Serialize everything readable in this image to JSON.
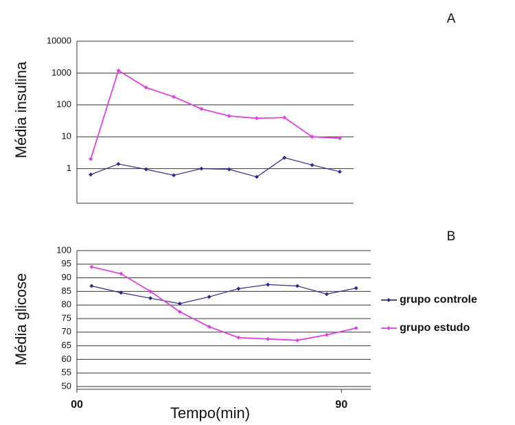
{
  "chart_data": [
    {
      "type": "line",
      "title": "A",
      "y_label": "Média insulina",
      "y_scale": "log",
      "ylim": [
        0.1,
        10000
      ],
      "yticks": [
        1,
        10,
        100,
        1000,
        10000
      ],
      "grid": true,
      "xlim": [
        0,
        100
      ],
      "x": [
        5,
        15,
        25,
        35,
        45,
        55,
        65,
        75,
        85,
        95
      ],
      "series": [
        {
          "color": "#2b2b8f",
          "values": [
            0.65,
            1.4,
            0.95,
            0.62,
            1.0,
            0.95,
            0.55,
            2.2,
            1.3,
            0.8
          ]
        },
        {
          "color": "#e040e0",
          "values": [
            2,
            1200,
            350,
            180,
            75,
            45,
            38,
            40,
            10,
            9
          ]
        }
      ]
    },
    {
      "type": "line",
      "title": "B",
      "y_label": "Média glicose",
      "x_label": "Tempo(min)",
      "ylim": [
        50,
        100
      ],
      "yticks": [
        50,
        55,
        60,
        65,
        70,
        75,
        80,
        85,
        90,
        95,
        100
      ],
      "grid": true,
      "xlim": [
        0,
        100
      ],
      "xticks": [
        {
          "value": 0,
          "label": "00"
        },
        {
          "value": 90,
          "label": "90"
        }
      ],
      "x": [
        5,
        15,
        25,
        35,
        45,
        55,
        65,
        75,
        85,
        95
      ],
      "legend": "right",
      "series": [
        {
          "name": "grupo controle",
          "color": "#2b2b8f",
          "values": [
            87,
            84.5,
            82.5,
            80.5,
            83,
            86,
            87.5,
            87,
            84,
            86.2
          ]
        },
        {
          "name": "grupo estudo",
          "color": "#e040e0",
          "values": [
            94,
            91.5,
            85,
            77.5,
            72,
            68,
            67.5,
            67,
            69,
            71.5
          ]
        }
      ]
    }
  ]
}
